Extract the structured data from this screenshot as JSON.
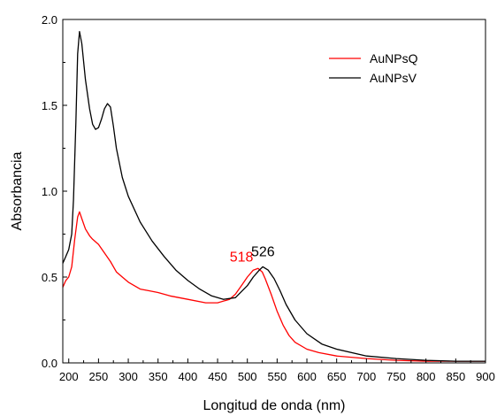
{
  "chart_data": {
    "type": "line",
    "title": "",
    "xlabel": "Longitud de onda  (nm)",
    "ylabel": "Absorbancia",
    "xlim": [
      190,
      900
    ],
    "ylim": [
      0,
      2.0
    ],
    "x_ticks": [
      200,
      250,
      300,
      350,
      400,
      450,
      500,
      550,
      600,
      650,
      700,
      750,
      800,
      850,
      900
    ],
    "x_tick_labels": [
      "200",
      "250",
      "300",
      "350",
      "400",
      "450",
      "500",
      "550",
      "600",
      "650",
      "700",
      "750",
      "800",
      "850",
      "900"
    ],
    "y_ticks": [
      0,
      0.5,
      1.0,
      1.5,
      2.0
    ],
    "y_tick_labels": [
      "0.0",
      "0.5",
      "1.0",
      "1.5",
      "2.0"
    ],
    "grid": false,
    "legend_position": "top-right",
    "series": [
      {
        "name": "AuNPsQ",
        "color": "#ff0000",
        "x": [
          190,
          195,
          200,
          205,
          210,
          215,
          218,
          222,
          228,
          235,
          240,
          250,
          260,
          270,
          280,
          290,
          300,
          310,
          320,
          335,
          350,
          370,
          400,
          430,
          450,
          470,
          480,
          490,
          500,
          510,
          518,
          525,
          530,
          540,
          550,
          560,
          570,
          580,
          600,
          620,
          650,
          700,
          750,
          800,
          850,
          900
        ],
        "y": [
          0.44,
          0.48,
          0.5,
          0.56,
          0.72,
          0.85,
          0.88,
          0.84,
          0.78,
          0.74,
          0.72,
          0.69,
          0.64,
          0.59,
          0.53,
          0.5,
          0.47,
          0.45,
          0.43,
          0.42,
          0.41,
          0.39,
          0.37,
          0.35,
          0.35,
          0.37,
          0.4,
          0.45,
          0.5,
          0.54,
          0.55,
          0.53,
          0.49,
          0.4,
          0.3,
          0.22,
          0.16,
          0.12,
          0.08,
          0.06,
          0.04,
          0.025,
          0.015,
          0.01,
          0.01,
          0.01
        ]
      },
      {
        "name": "AuNPsV",
        "color": "#000000",
        "x": [
          190,
          195,
          200,
          205,
          208,
          212,
          215,
          218,
          222,
          228,
          235,
          240,
          245,
          250,
          255,
          260,
          265,
          270,
          275,
          280,
          290,
          300,
          320,
          340,
          360,
          380,
          400,
          420,
          440,
          460,
          480,
          500,
          510,
          520,
          526,
          535,
          545,
          555,
          565,
          580,
          600,
          625,
          650,
          700,
          750,
          800,
          850,
          900
        ],
        "y": [
          0.58,
          0.62,
          0.66,
          0.75,
          0.95,
          1.4,
          1.8,
          1.93,
          1.86,
          1.65,
          1.48,
          1.39,
          1.36,
          1.37,
          1.42,
          1.48,
          1.51,
          1.49,
          1.38,
          1.25,
          1.08,
          0.97,
          0.82,
          0.71,
          0.62,
          0.54,
          0.48,
          0.43,
          0.39,
          0.37,
          0.38,
          0.45,
          0.5,
          0.54,
          0.56,
          0.54,
          0.49,
          0.42,
          0.34,
          0.25,
          0.17,
          0.11,
          0.08,
          0.04,
          0.025,
          0.015,
          0.01,
          0.01
        ]
      }
    ],
    "annotations": [
      {
        "text": "518",
        "x": 510,
        "y": 0.55,
        "color": "#ff0000"
      },
      {
        "text": "526",
        "x": 546,
        "y": 0.58,
        "color": "#000000"
      }
    ]
  }
}
